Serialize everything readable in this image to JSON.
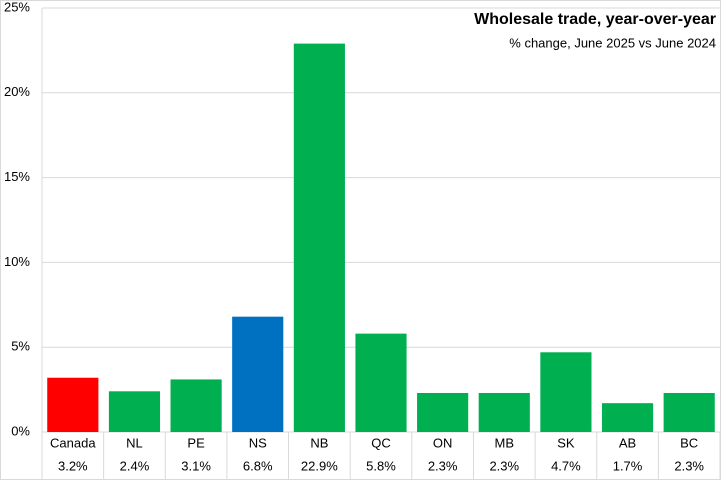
{
  "chart_data": {
    "type": "bar",
    "title": "Wholesale trade, year-over-year",
    "subtitle": "% change, June 2025 vs June 2024",
    "categories": [
      "Canada",
      "NL",
      "PE",
      "NS",
      "NB",
      "QC",
      "ON",
      "MB",
      "SK",
      "AB",
      "BC"
    ],
    "values": [
      3.2,
      2.4,
      3.1,
      6.8,
      22.9,
      5.8,
      2.3,
      2.3,
      4.7,
      1.7,
      2.3
    ],
    "value_labels": [
      "3.2%",
      "2.4%",
      "3.1%",
      "6.8%",
      "22.9%",
      "5.8%",
      "2.3%",
      "2.3%",
      "4.7%",
      "1.7%",
      "2.3%"
    ],
    "colors": [
      "#ff0000",
      "#00b050",
      "#00b050",
      "#0070c0",
      "#00b050",
      "#00b050",
      "#00b050",
      "#00b050",
      "#00b050",
      "#00b050",
      "#00b050"
    ],
    "ylim": [
      0,
      25
    ],
    "yticks": [
      {
        "value": 0,
        "label": "0%"
      },
      {
        "value": 5,
        "label": "5%"
      },
      {
        "value": 10,
        "label": "10%"
      },
      {
        "value": 15,
        "label": "15%"
      },
      {
        "value": 20,
        "label": "20%"
      },
      {
        "value": 25,
        "label": "25%"
      }
    ],
    "grid": true
  }
}
